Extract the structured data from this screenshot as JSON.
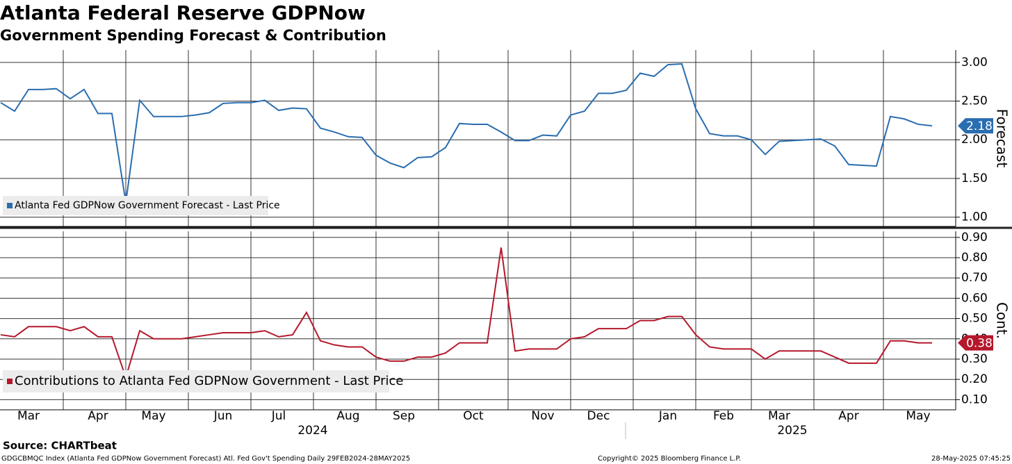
{
  "header": {
    "title": "Atlanta Federal Reserve GDPNow",
    "subtitle": "Government Spending Forecast & Contribution"
  },
  "chart_data": [
    {
      "type": "line",
      "ylabel": "Forecast",
      "series": [
        {
          "name": "Atlanta Fed GDPNow Government Forecast - Last Price",
          "color": "#2a6db0",
          "values": [
            2.48,
            2.37,
            2.65,
            2.65,
            2.66,
            2.53,
            2.65,
            2.34,
            2.34,
            1.19,
            2.51,
            2.3,
            2.3,
            2.3,
            2.32,
            2.35,
            2.47,
            2.48,
            2.48,
            2.51,
            2.38,
            2.41,
            2.4,
            2.15,
            2.1,
            2.04,
            2.03,
            1.8,
            1.7,
            1.64,
            1.77,
            1.78,
            1.9,
            2.21,
            2.2,
            2.2,
            2.1,
            1.99,
            1.99,
            2.06,
            2.05,
            2.32,
            2.37,
            2.6,
            2.6,
            2.64,
            2.86,
            2.82,
            2.97,
            2.98,
            2.4,
            2.08,
            2.05,
            2.05,
            2.0,
            1.81,
            1.98,
            1.99,
            2.0,
            2.01,
            1.92,
            1.68,
            1.67,
            1.66,
            2.3,
            2.27,
            2.2,
            2.18
          ],
          "last_value_label": "2.18"
        }
      ],
      "ylim": [
        0.88,
        3.16
      ],
      "yticks": [
        {
          "value": 1,
          "label": "1.00"
        },
        {
          "value": 1.5,
          "label": "1.50"
        },
        {
          "value": 2,
          "label": "2.00"
        },
        {
          "value": 2.5,
          "label": "2.50"
        },
        {
          "value": 3,
          "label": "3.00"
        }
      ],
      "grid": true
    },
    {
      "type": "line",
      "ylabel": "Cont.",
      "categories": [
        null,
        null,
        "Mar",
        null,
        null,
        null,
        null,
        "Apr",
        null,
        null,
        null,
        "May",
        null,
        null,
        null,
        null,
        "Jun",
        null,
        null,
        null,
        "Jul",
        null,
        null,
        null,
        null,
        "Aug",
        null,
        null,
        null,
        "Sep",
        null,
        null,
        null,
        null,
        "Oct",
        null,
        null,
        null,
        null,
        "Nov",
        null,
        null,
        null,
        "Dec",
        null,
        null,
        null,
        null,
        "Jan",
        null,
        null,
        null,
        "Feb",
        null,
        null,
        null,
        "Mar",
        null,
        null,
        null,
        null,
        "Apr",
        null,
        null,
        null,
        null,
        "May",
        null
      ],
      "x_groups": [
        "2024",
        "2025"
      ],
      "series": [
        {
          "name": "Contributions to Atlanta Fed GDPNow Government - Last Price",
          "color": "#b5182b",
          "values": [
            0.42,
            0.41,
            0.46,
            0.46,
            0.46,
            0.44,
            0.46,
            0.41,
            0.41,
            0.21,
            0.44,
            0.4,
            0.4,
            0.4,
            0.41,
            0.42,
            0.43,
            0.43,
            0.43,
            0.44,
            0.41,
            0.42,
            0.53,
            0.39,
            0.37,
            0.36,
            0.36,
            0.31,
            0.29,
            0.29,
            0.31,
            0.31,
            0.33,
            0.38,
            0.38,
            0.38,
            0.85,
            0.34,
            0.35,
            0.35,
            0.35,
            0.4,
            0.41,
            0.45,
            0.45,
            0.45,
            0.49,
            0.49,
            0.51,
            0.51,
            0.42,
            0.36,
            0.35,
            0.35,
            0.35,
            0.3,
            0.34,
            0.34,
            0.34,
            0.34,
            0.31,
            0.28,
            0.28,
            0.28,
            0.39,
            0.39,
            0.38,
            0.38
          ],
          "last_value_label": "0.38"
        }
      ],
      "ylim": [
        0.05,
        0.93
      ],
      "yticks": [
        {
          "value": 0.1,
          "label": "0.10"
        },
        {
          "value": 0.2,
          "label": "0.20"
        },
        {
          "value": 0.3,
          "label": "0.30"
        },
        {
          "value": 0.4,
          "label": "0.40"
        },
        {
          "value": 0.5,
          "label": "0.50"
        },
        {
          "value": 0.6,
          "label": "0.60"
        },
        {
          "value": 0.7,
          "label": "0.70"
        },
        {
          "value": 0.8,
          "label": "0.80"
        },
        {
          "value": 0.9,
          "label": "0.90"
        }
      ],
      "grid": true
    }
  ],
  "footer": {
    "source": "Source: CHARTbeat",
    "description": "GDGCBMQC Index (Atlanta Fed GDPNow Government Forecast) Atl. Fed Gov't Spending  Daily 29FEB2024-28MAY2025",
    "copyright": "Copyright© 2025 Bloomberg Finance L.P.",
    "timestamp": "28-May-2025 07:45:25"
  }
}
